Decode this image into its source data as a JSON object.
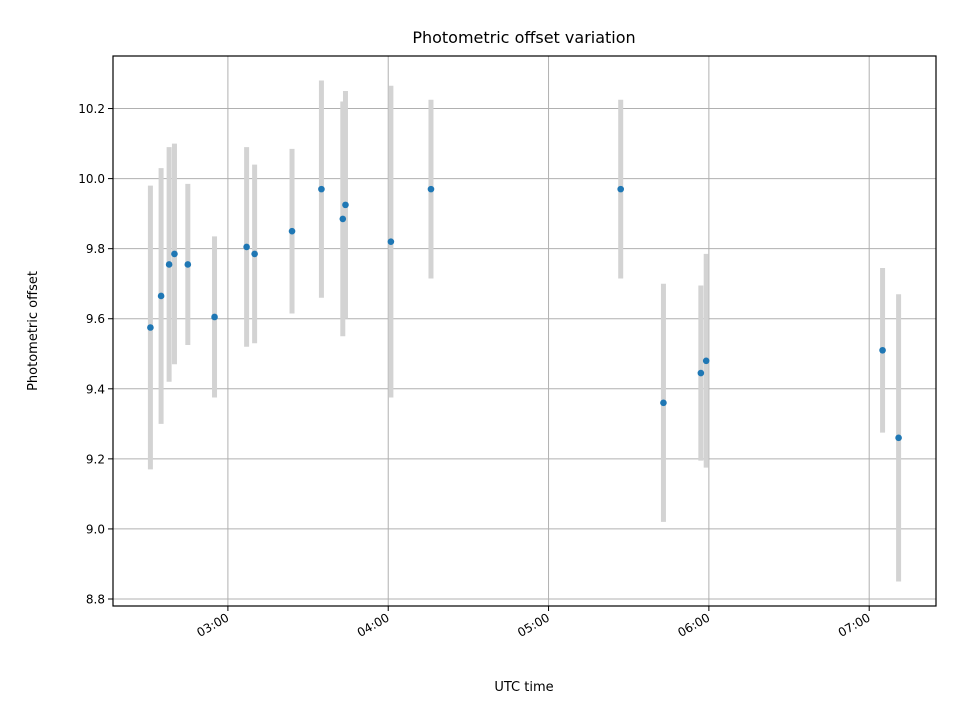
{
  "chart_data": {
    "type": "scatter",
    "title": "Photometric offset variation",
    "xlabel": "UTC time",
    "ylabel": "Photometric offset",
    "x_axis_type": "time",
    "xlim": [
      "02:17",
      "07:25"
    ],
    "ylim": [
      8.78,
      10.35
    ],
    "x_ticks": [
      "03:00",
      "04:00",
      "05:00",
      "06:00",
      "07:00"
    ],
    "y_ticks": [
      8.8,
      9.0,
      9.2,
      9.4,
      9.6,
      9.8,
      10.0,
      10.2
    ],
    "y_tick_labels": [
      "8.8",
      "9.0",
      "9.2",
      "9.4",
      "9.6",
      "9.8",
      "10.0",
      "10.2"
    ],
    "grid": true,
    "marker_color": "#1f77b4",
    "errorbar_color": "#d3d3d3",
    "points": [
      {
        "x": "02:31",
        "y": 9.575,
        "yerr": 0.405
      },
      {
        "x": "02:35",
        "y": 9.665,
        "yerr": 0.365
      },
      {
        "x": "02:38",
        "y": 9.755,
        "yerr": 0.335
      },
      {
        "x": "02:40",
        "y": 9.785,
        "yerr": 0.315
      },
      {
        "x": "02:45",
        "y": 9.755,
        "yerr": 0.23
      },
      {
        "x": "02:55",
        "y": 9.605,
        "yerr": 0.23
      },
      {
        "x": "03:07",
        "y": 9.805,
        "yerr": 0.285
      },
      {
        "x": "03:10",
        "y": 9.785,
        "yerr": 0.255
      },
      {
        "x": "03:24",
        "y": 9.85,
        "yerr": 0.235
      },
      {
        "x": "03:35",
        "y": 9.97,
        "yerr": 0.31
      },
      {
        "x": "03:43",
        "y": 9.885,
        "yerr": 0.335
      },
      {
        "x": "03:44",
        "y": 9.925,
        "yerr": 0.325
      },
      {
        "x": "04:01",
        "y": 9.82,
        "yerr": 0.445
      },
      {
        "x": "04:16",
        "y": 9.97,
        "yerr": 0.255
      },
      {
        "x": "05:27",
        "y": 9.97,
        "yerr": 0.255
      },
      {
        "x": "05:43",
        "y": 9.36,
        "yerr": 0.34
      },
      {
        "x": "05:57",
        "y": 9.445,
        "yerr": 0.25
      },
      {
        "x": "05:59",
        "y": 9.48,
        "yerr": 0.305
      },
      {
        "x": "07:05",
        "y": 9.51,
        "yerr": 0.235
      },
      {
        "x": "07:11",
        "y": 9.26,
        "yerr": 0.41
      }
    ]
  }
}
